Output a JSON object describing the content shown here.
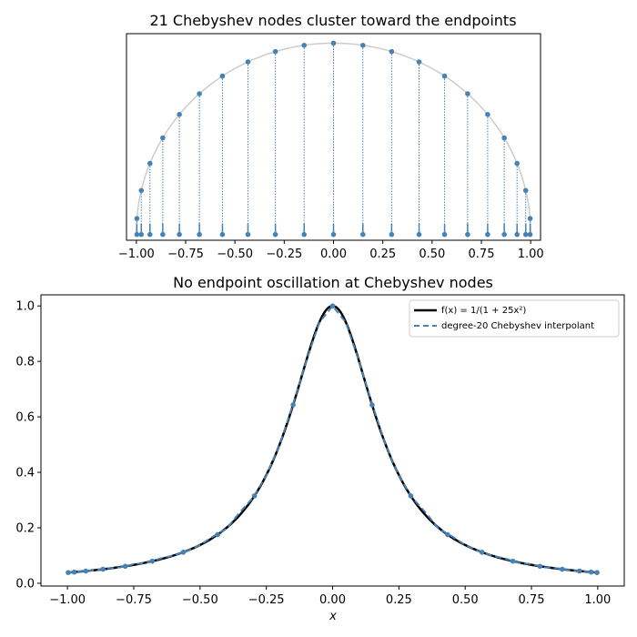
{
  "chart_data": [
    {
      "type": "scatter",
      "title": "21 Chebyshev nodes cluster toward the endpoints",
      "xlabel": "",
      "ylabel": "",
      "xlim": [
        -1.05,
        1.05
      ],
      "ylim": [
        -0.04,
        1.05
      ],
      "x_ticks": [
        -1.0,
        -0.75,
        -0.5,
        -0.25,
        0.0,
        0.25,
        0.5,
        0.75,
        1.0
      ],
      "x_tick_labels": [
        "−1.00",
        "−0.75",
        "−0.50",
        "−0.25",
        "0.00",
        "0.25",
        "0.50",
        "0.75",
        "1.00"
      ],
      "y_ticks_visible": false,
      "grid": false,
      "semicircle_color": "#cccccc",
      "node_color": "#4682b4",
      "nodes": {
        "count": 21,
        "x": [
          0.9972,
          0.9749,
          0.9309,
          0.866,
          0.7818,
          0.6802,
          0.5633,
          0.4339,
          0.2948,
          0.149,
          0.0,
          -0.149,
          -0.2948,
          -0.4339,
          -0.5633,
          -0.6802,
          -0.7818,
          -0.866,
          -0.9309,
          -0.9749,
          -0.9972
        ],
        "y": [
          0.0747,
          0.2225,
          0.3653,
          0.5,
          0.6235,
          0.733,
          0.8262,
          0.901,
          0.9556,
          0.9888,
          1.0,
          0.9888,
          0.9556,
          0.901,
          0.8262,
          0.733,
          0.6235,
          0.5,
          0.3653,
          0.2225,
          0.0747
        ]
      }
    },
    {
      "type": "line",
      "title": "No endpoint oscillation at Chebyshev nodes",
      "xlabel": "x",
      "ylabel": "",
      "xlim": [
        -1.1,
        1.1
      ],
      "ylim": [
        -0.01,
        1.04
      ],
      "x_ticks": [
        -1.0,
        -0.75,
        -0.5,
        -0.25,
        0.0,
        0.25,
        0.5,
        0.75,
        1.0
      ],
      "x_tick_labels": [
        "−1.00",
        "−0.75",
        "−0.50",
        "−0.25",
        "0.00",
        "0.25",
        "0.50",
        "0.75",
        "1.00"
      ],
      "y_ticks": [
        0.0,
        0.2,
        0.4,
        0.6,
        0.8,
        1.0
      ],
      "y_tick_labels": [
        "0.0",
        "0.2",
        "0.4",
        "0.6",
        "0.8",
        "1.0"
      ],
      "grid": false,
      "legend_position": "upper right",
      "series": [
        {
          "name": "f(x) = 1/(1 + 25x²)",
          "style": "solid",
          "color": "#000000",
          "function": "1/(1+25x^2)"
        },
        {
          "name": "degree-20 Chebyshev interpolant",
          "style": "dashed",
          "color": "#4682b4",
          "x": [
            -1.0,
            -0.95,
            -0.9,
            -0.85,
            -0.8,
            -0.75,
            -0.7,
            -0.65,
            -0.6,
            -0.55,
            -0.5,
            -0.45,
            -0.4,
            -0.35,
            -0.3,
            -0.25,
            -0.2,
            -0.15,
            -0.1,
            -0.05,
            0.0,
            0.05,
            0.1,
            0.15,
            0.2,
            0.25,
            0.3,
            0.35,
            0.4,
            0.45,
            0.5,
            0.55,
            0.6,
            0.65,
            0.7,
            0.75,
            0.8,
            0.85,
            0.9,
            0.95,
            1.0
          ],
          "y": [
            0.0385,
            0.043,
            0.0467,
            0.0535,
            0.0577,
            0.0688,
            0.0741,
            0.0893,
            0.1,
            0.1159,
            0.138,
            0.1692,
            0.1967,
            0.2558,
            0.3085,
            0.3887,
            0.4982,
            0.6442,
            0.7993,
            0.9406,
            1.0,
            0.9406,
            0.7993,
            0.6442,
            0.4982,
            0.3887,
            0.3085,
            0.2558,
            0.1967,
            0.1692,
            0.138,
            0.1159,
            0.1,
            0.0893,
            0.0741,
            0.0688,
            0.0577,
            0.0535,
            0.0467,
            0.043,
            0.0385
          ]
        }
      ],
      "markers": {
        "color": "#4682b4",
        "x": [
          0.9972,
          0.9749,
          0.9309,
          0.866,
          0.7818,
          0.6802,
          0.5633,
          0.4339,
          0.2948,
          0.149,
          0.0,
          -0.149,
          -0.2948,
          -0.4339,
          -0.5633,
          -0.6802,
          -0.7818,
          -0.866,
          -0.9309,
          -0.9749,
          -0.9972
        ],
        "y": [
          0.0386,
          0.0404,
          0.0441,
          0.0506,
          0.0614,
          0.0796,
          0.1119,
          0.1752,
          0.3152,
          0.6432,
          1.0,
          0.6432,
          0.3152,
          0.1752,
          0.1119,
          0.0796,
          0.0614,
          0.0506,
          0.0441,
          0.0404,
          0.0386
        ]
      }
    }
  ]
}
